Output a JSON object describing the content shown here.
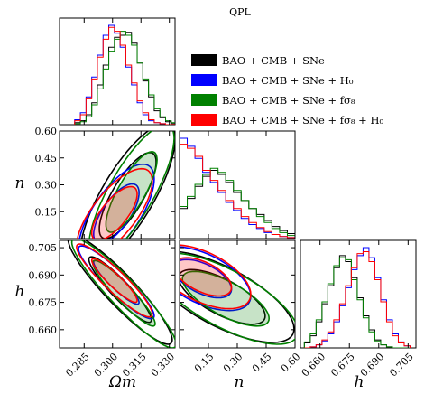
{
  "chart_data": {
    "type": "corner",
    "title": "QPL",
    "legend": {
      "placement": "upper-right",
      "entries": [
        {
          "label": "BAO + CMB + SNe",
          "color": "#000000"
        },
        {
          "label": "BAO + CMB + SNe + H₀",
          "color": "#0000ff"
        },
        {
          "label": "BAO + CMB + SNe + fσ₈",
          "color": "#008000"
        },
        {
          "label": "BAO + CMB + SNe + fσ₈ + H₀",
          "color": "#ff0000"
        }
      ]
    },
    "params": [
      {
        "key": "om",
        "label": "Ωm",
        "range": [
          0.272,
          0.333
        ],
        "ticks": [
          0.285,
          0.3,
          0.315,
          0.33
        ],
        "tick_labels": [
          "0.285",
          "0.300",
          "0.315",
          "0.330"
        ]
      },
      {
        "key": "n",
        "label": "n",
        "range": [
          0.0,
          0.6
        ],
        "ticks": [
          0.15,
          0.3,
          0.45,
          0.6
        ],
        "tick_labels": [
          "0.15",
          "0.30",
          "0.45",
          "0.60"
        ]
      },
      {
        "key": "h",
        "label": "h",
        "range": [
          0.65,
          0.709
        ],
        "ticks": [
          0.66,
          0.675,
          0.69,
          0.705
        ],
        "tick_labels": [
          "0.660",
          "0.675",
          "0.690",
          "0.705"
        ]
      }
    ],
    "marginals": {
      "om": {
        "bins": [
          0.28,
          0.283,
          0.286,
          0.289,
          0.292,
          0.295,
          0.298,
          0.301,
          0.304,
          0.307,
          0.31,
          0.313,
          0.316,
          0.319,
          0.322,
          0.325,
          0.328,
          0.331
        ],
        "series": [
          {
            "name": "BAO + CMB + SNe",
            "color": "#000000",
            "values": [
              0.02,
              0.04,
              0.1,
              0.22,
              0.4,
              0.6,
              0.78,
              0.88,
              0.9,
              0.93,
              0.82,
              0.62,
              0.44,
              0.28,
              0.14,
              0.07,
              0.03,
              0.01
            ]
          },
          {
            "name": "BAO + CMB + SNe + H₀",
            "color": "#0000ff",
            "values": [
              0.05,
              0.12,
              0.28,
              0.48,
              0.7,
              0.9,
              1.0,
              0.92,
              0.78,
              0.58,
              0.4,
              0.22,
              0.1,
              0.04,
              0.02,
              0.01,
              0.0,
              0.0
            ]
          },
          {
            "name": "BAO + CMB + SNe + fσ₈",
            "color": "#008000",
            "values": [
              0.01,
              0.03,
              0.08,
              0.2,
              0.36,
              0.56,
              0.74,
              0.86,
              0.94,
              0.9,
              0.8,
              0.62,
              0.46,
              0.3,
              0.16,
              0.08,
              0.04,
              0.02
            ]
          },
          {
            "name": "BAO + CMB + SNe + fσ₈ + H₀",
            "color": "#ff0000",
            "values": [
              0.04,
              0.1,
              0.26,
              0.46,
              0.68,
              0.86,
              0.98,
              0.94,
              0.8,
              0.6,
              0.42,
              0.24,
              0.12,
              0.05,
              0.02,
              0.01,
              0.0,
              0.0
            ]
          }
        ]
      },
      "n": {
        "bins": [
          0.0,
          0.04,
          0.08,
          0.12,
          0.16,
          0.2,
          0.24,
          0.28,
          0.32,
          0.36,
          0.4,
          0.44,
          0.48,
          0.52,
          0.56
        ],
        "series": [
          {
            "name": "BAO + CMB + SNe",
            "color": "#000000",
            "values": [
              0.3,
              0.4,
              0.52,
              0.62,
              0.68,
              0.64,
              0.56,
              0.46,
              0.38,
              0.3,
              0.24,
              0.18,
              0.12,
              0.08,
              0.05
            ]
          },
          {
            "name": "BAO + CMB + SNe + H₀",
            "color": "#0000ff",
            "values": [
              1.0,
              0.92,
              0.8,
              0.66,
              0.56,
              0.46,
              0.36,
              0.28,
              0.2,
              0.14,
              0.1,
              0.06,
              0.04,
              0.02,
              0.01
            ]
          },
          {
            "name": "BAO + CMB + SNe + fσ₈",
            "color": "#008000",
            "values": [
              0.32,
              0.42,
              0.54,
              0.64,
              0.7,
              0.66,
              0.58,
              0.48,
              0.38,
              0.3,
              0.22,
              0.16,
              0.1,
              0.06,
              0.03
            ]
          },
          {
            "name": "BAO + CMB + SNe + fσ₈ + H₀",
            "color": "#ff0000",
            "values": [
              0.94,
              0.9,
              0.82,
              0.68,
              0.58,
              0.48,
              0.38,
              0.3,
              0.22,
              0.16,
              0.11,
              0.07,
              0.04,
              0.02,
              0.01
            ]
          }
        ]
      },
      "h": {
        "bins": [
          0.652,
          0.655,
          0.658,
          0.661,
          0.664,
          0.667,
          0.67,
          0.673,
          0.676,
          0.679,
          0.682,
          0.685,
          0.688,
          0.691,
          0.694,
          0.697,
          0.7,
          0.703
        ],
        "series": [
          {
            "name": "BAO + CMB + SNe",
            "color": "#000000",
            "values": [
              0.05,
              0.12,
              0.26,
              0.44,
              0.62,
              0.8,
              0.92,
              0.86,
              0.7,
              0.5,
              0.32,
              0.18,
              0.08,
              0.03,
              0.01,
              0.0,
              0.0,
              0.0
            ]
          },
          {
            "name": "BAO + CMB + SNe + H₀",
            "color": "#0000ff",
            "values": [
              0.0,
              0.01,
              0.03,
              0.07,
              0.14,
              0.26,
              0.42,
              0.6,
              0.78,
              0.92,
              1.0,
              0.9,
              0.7,
              0.48,
              0.28,
              0.14,
              0.06,
              0.02
            ]
          },
          {
            "name": "BAO + CMB + SNe + fσ₈",
            "color": "#008000",
            "values": [
              0.06,
              0.14,
              0.28,
              0.46,
              0.64,
              0.82,
              0.9,
              0.88,
              0.68,
              0.48,
              0.3,
              0.16,
              0.07,
              0.03,
              0.01,
              0.0,
              0.0,
              0.0
            ]
          },
          {
            "name": "BAO + CMB + SNe + fσ₈ + H₀",
            "color": "#ff0000",
            "values": [
              0.0,
              0.01,
              0.03,
              0.08,
              0.16,
              0.28,
              0.44,
              0.62,
              0.8,
              0.94,
              0.96,
              0.86,
              0.68,
              0.46,
              0.26,
              0.12,
              0.05,
              0.02
            ]
          }
        ]
      }
    },
    "joints": [
      {
        "x": "om",
        "y": "n",
        "contours": [
          {
            "series": "BAO + CMB + SNe",
            "color": "#000000",
            "center": [
              0.308,
              0.24
            ],
            "sx": 0.01,
            "sy": 0.16,
            "rho": 0.78,
            "levels": [
              1.5,
              2.5
            ]
          },
          {
            "series": "BAO + CMB + SNe + H₀",
            "color": "#0000ff",
            "center": [
              0.302,
              0.14
            ],
            "sx": 0.008,
            "sy": 0.11,
            "rho": 0.7,
            "levels": [
              1.5,
              2.5
            ]
          },
          {
            "series": "BAO + CMB + SNe + fσ₈",
            "color": "#008000",
            "center": [
              0.31,
              0.26
            ],
            "sx": 0.009,
            "sy": 0.15,
            "rho": 0.8,
            "levels": [
              1.5,
              2.5
            ]
          },
          {
            "series": "BAO + CMB + SNe + fσ₈ + H₀",
            "color": "#ff0000",
            "center": [
              0.301,
              0.14
            ],
            "sx": 0.008,
            "sy": 0.1,
            "rho": 0.72,
            "levels": [
              1.5,
              2.5
            ]
          }
        ]
      },
      {
        "x": "om",
        "y": "h",
        "contours": [
          {
            "series": "BAO + CMB + SNe",
            "color": "#000000",
            "center": [
              0.304,
              0.682
            ],
            "sx": 0.011,
            "sy": 0.012,
            "rho": -0.92,
            "levels": [
              1.5,
              2.5
            ]
          },
          {
            "series": "BAO + CMB + SNe + H₀",
            "color": "#0000ff",
            "center": [
              0.302,
              0.686
            ],
            "sx": 0.008,
            "sy": 0.008,
            "rho": -0.92,
            "levels": [
              1.5,
              2.5
            ]
          },
          {
            "series": "BAO + CMB + SNe + fσ₈",
            "color": "#008000",
            "center": [
              0.306,
              0.68
            ],
            "sx": 0.011,
            "sy": 0.012,
            "rho": -0.93,
            "levels": [
              1.5,
              2.5
            ]
          },
          {
            "series": "BAO + CMB + SNe + fσ₈ + H₀",
            "color": "#ff0000",
            "center": [
              0.301,
              0.687
            ],
            "sx": 0.008,
            "sy": 0.008,
            "rho": -0.92,
            "levels": [
              1.5,
              2.5
            ]
          }
        ]
      },
      {
        "x": "n",
        "y": "h",
        "contours": [
          {
            "series": "BAO + CMB + SNe",
            "color": "#000000",
            "center": [
              0.22,
              0.678
            ],
            "sx": 0.15,
            "sy": 0.01,
            "rho": -0.7,
            "levels": [
              1.5,
              2.5
            ]
          },
          {
            "series": "BAO + CMB + SNe + H₀",
            "color": "#0000ff",
            "center": [
              0.12,
              0.688
            ],
            "sx": 0.1,
            "sy": 0.007,
            "rho": -0.55,
            "levels": [
              1.5,
              2.5
            ]
          },
          {
            "series": "BAO + CMB + SNe + fσ₈",
            "color": "#008000",
            "center": [
              0.24,
              0.677
            ],
            "sx": 0.15,
            "sy": 0.01,
            "rho": -0.72,
            "levels": [
              1.5,
              2.5
            ]
          },
          {
            "series": "BAO + CMB + SNe + fσ₈ + H₀",
            "color": "#ff0000",
            "center": [
              0.12,
              0.689
            ],
            "sx": 0.1,
            "sy": 0.007,
            "rho": -0.55,
            "levels": [
              1.5,
              2.5
            ]
          }
        ]
      }
    ],
    "grid": false
  }
}
